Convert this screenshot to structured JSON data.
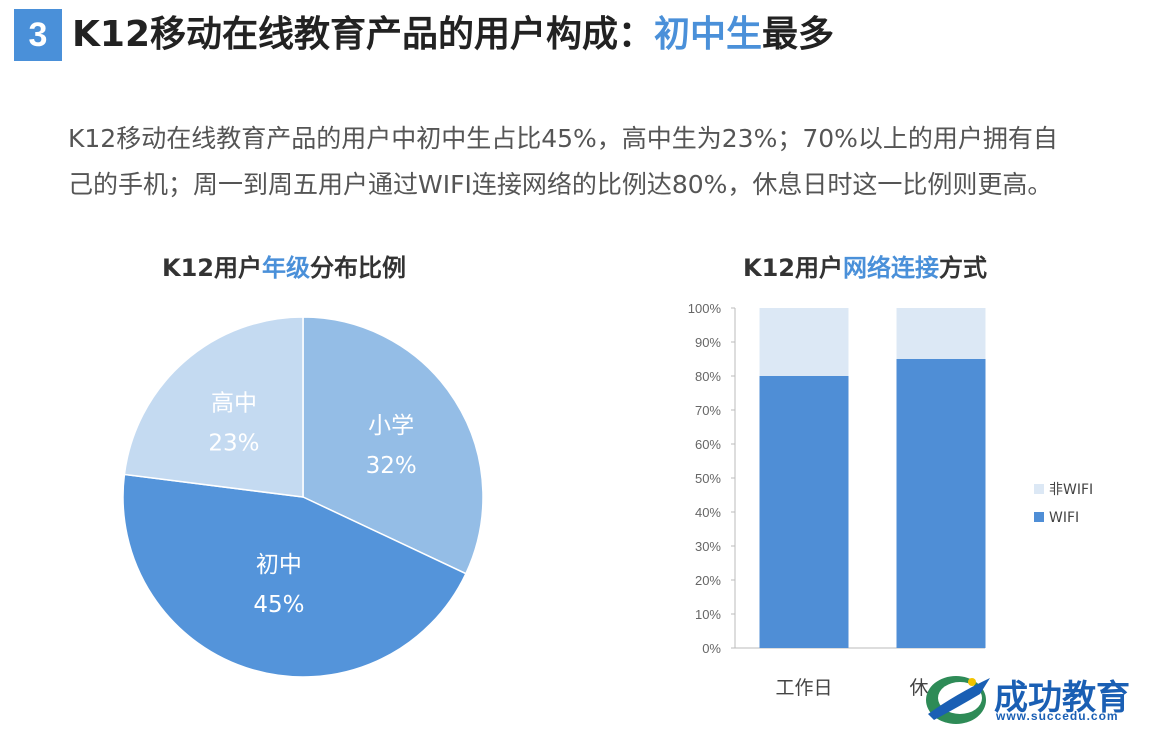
{
  "header": {
    "section_number": "3",
    "title_prefix": "K12移动在线教育产品的用户构成：",
    "title_highlight": "初中生",
    "title_suffix": "最多"
  },
  "summary": {
    "line1": "K12移动在线教育产品的用户中初中生占比45%，高中生为23%；70%以上的用户拥有自",
    "line2": "己的手机；周一到周五用户通过WIFI连接网络的比例达80%，休息日时这一比例则更高。"
  },
  "pie_chart": {
    "title_prefix": "K12用户",
    "title_highlight": "年级",
    "title_suffix": "分布比例"
  },
  "bar_chart": {
    "title_prefix": "K12用户",
    "title_highlight": "网络连接",
    "title_suffix": "方式"
  },
  "logo": {
    "name": "成功教育",
    "url": "www.succedu.com"
  },
  "colors": {
    "accent": "#4a90d9",
    "pie_xiaoxue": "#94bde6",
    "pie_chuzhong": "#5494da",
    "pie_gaozhong": "#c4daf1",
    "bar_wifi": "#4f8ed6",
    "bar_non_wifi": "#dce8f5"
  },
  "chart_data": [
    {
      "type": "pie",
      "title": "K12用户年级分布比例",
      "slices": [
        {
          "label": "小学",
          "value": 32,
          "display": "32%"
        },
        {
          "label": "初中",
          "value": 45,
          "display": "45%"
        },
        {
          "label": "高中",
          "value": 23,
          "display": "23%"
        }
      ]
    },
    {
      "type": "bar",
      "stacked": true,
      "title": "K12用户网络连接方式",
      "categories": [
        "工作日",
        "休"
      ],
      "series": [
        {
          "name": "WIFI",
          "values": [
            80,
            85
          ]
        },
        {
          "name": "非WIFI",
          "values": [
            20,
            15
          ]
        }
      ],
      "ylim": [
        0,
        100
      ],
      "yticks": [
        "0%",
        "10%",
        "20%",
        "30%",
        "40%",
        "50%",
        "60%",
        "70%",
        "80%",
        "90%",
        "100%"
      ],
      "legend": [
        "非WIFI",
        "WIFI"
      ],
      "legend_position": "right"
    }
  ]
}
